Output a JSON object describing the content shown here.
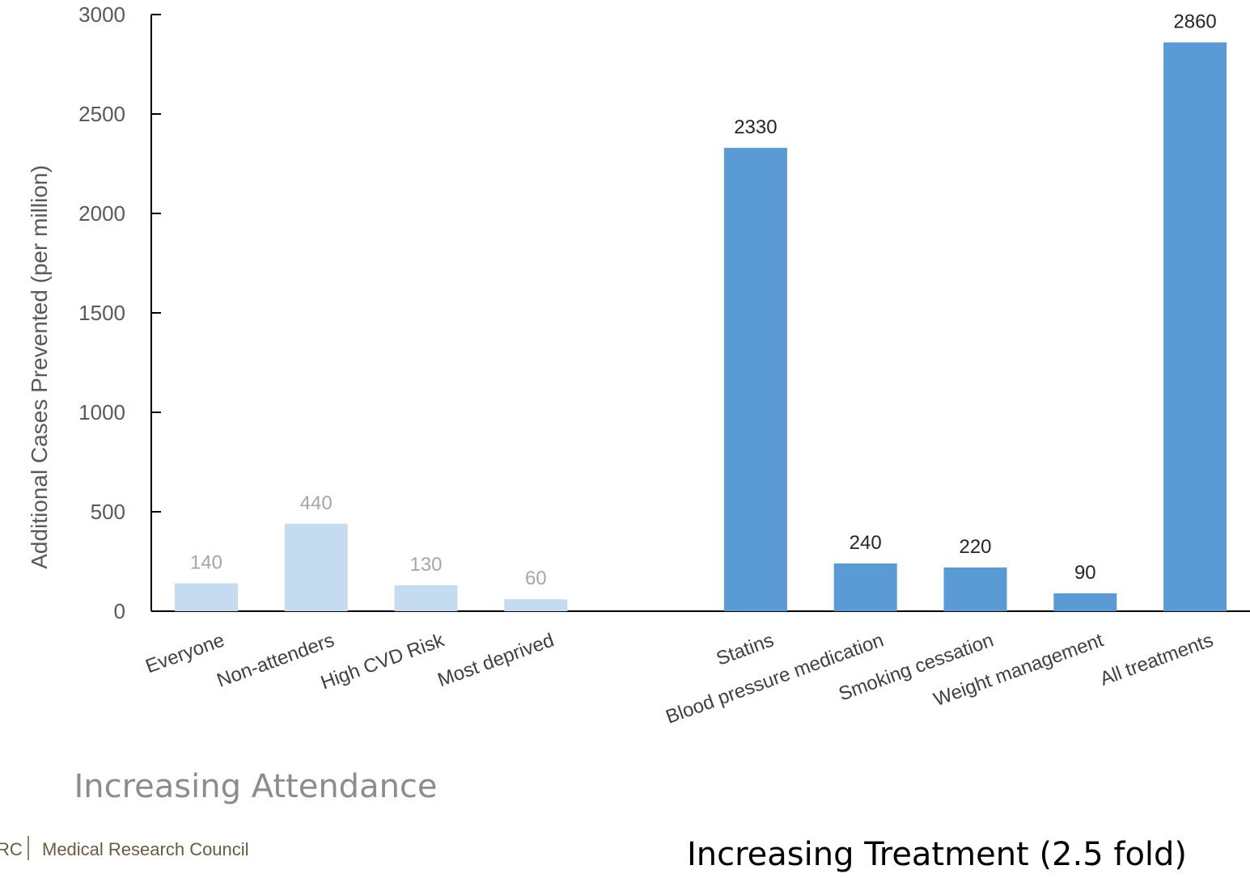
{
  "chart_data": {
    "type": "bar",
    "ylabel": "Additional Cases Prevented (per million)",
    "ylim": [
      0,
      3000
    ],
    "yticks": [
      0,
      500,
      1000,
      1500,
      2000,
      2500,
      3000
    ],
    "grid": false,
    "categories": [
      "Everyone",
      "Non-attenders",
      "High CVD Risk",
      "Most deprived",
      "Statins",
      "Blood pressure medication",
      "Smoking cessation",
      "Weight management",
      "All treatments"
    ],
    "values": [
      140,
      440,
      130,
      60,
      2330,
      240,
      220,
      90,
      2860
    ],
    "data_labels": [
      "140",
      "440",
      "130",
      "60",
      "2330",
      "240",
      "220",
      "90",
      "2860"
    ],
    "groups": [
      {
        "caption": "Increasing Attendance",
        "categories": [
          "Everyone",
          "Non-attenders",
          "High CVD Risk",
          "Most deprived"
        ],
        "color": "#c5dbf0",
        "label_color": "#a6a6a6"
      },
      {
        "caption": "Increasing Treatment (2.5 fold)",
        "categories": [
          "Statins",
          "Blood pressure medication",
          "Smoking cessation",
          "Weight management",
          "All treatments"
        ],
        "color": "#5b9bd5",
        "label_color": "#262626"
      }
    ]
  },
  "footer": {
    "logo_fragment": "RC",
    "logo_text": "Medical Research Council"
  }
}
